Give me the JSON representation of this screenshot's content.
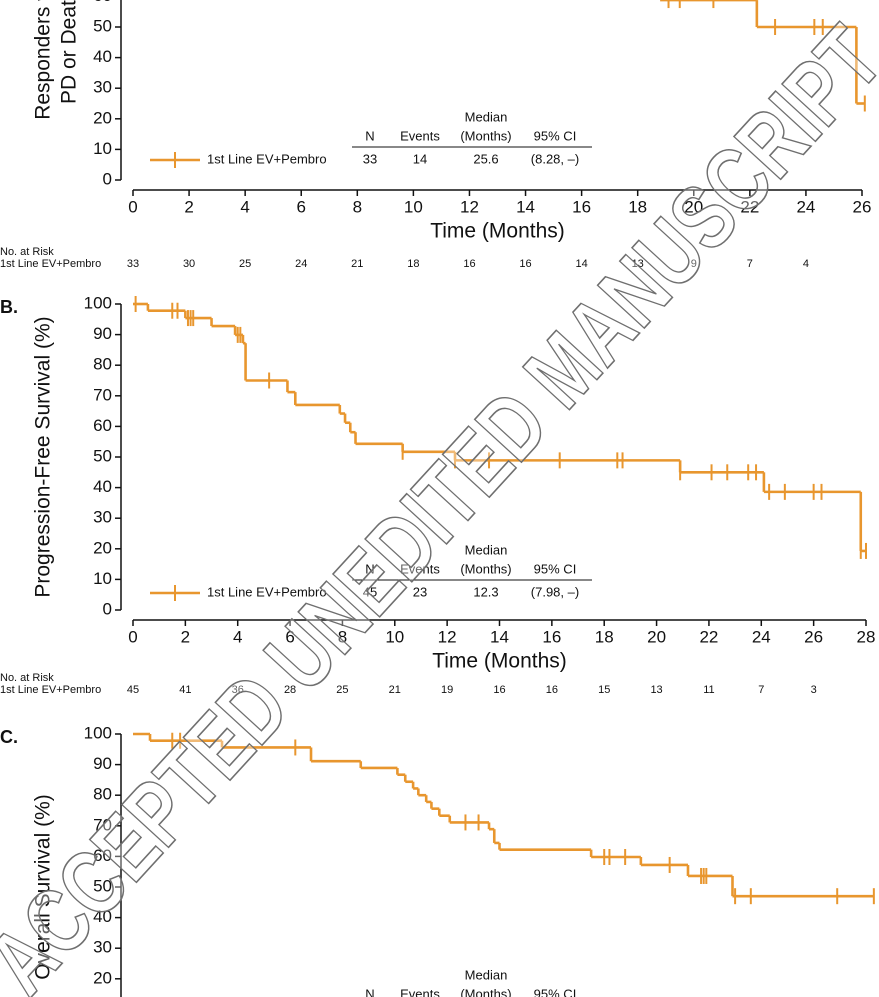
{
  "chart_data": [
    {
      "type": "step",
      "y_label": [
        "Responders without",
        "PD or Death (%)"
      ],
      "x_label": "Time (Months)",
      "xlim": [
        0,
        26
      ],
      "xticks": [
        0,
        2,
        4,
        6,
        8,
        10,
        12,
        14,
        16,
        18,
        20,
        22,
        24,
        26
      ],
      "ylim": [
        0,
        100
      ],
      "yticks": [
        0,
        10,
        20,
        30,
        40,
        50,
        60
      ],
      "series": [
        {
          "name": "1st Line EV+Pembro",
          "color": "#e8962e",
          "x": [
            18.8,
            22.25,
            25.8
          ],
          "values": [
            58.8,
            50,
            25
          ],
          "censor_x": [
            19.1,
            19.5,
            20.7,
            22.9,
            24.3,
            24.6,
            26.1
          ],
          "censor_values": [
            58.8,
            58.8,
            58.8,
            50,
            50,
            50,
            25
          ]
        }
      ],
      "stats": {
        "header_top": "Median",
        "header": [
          "N",
          "Events",
          "(Months)",
          "95% CI"
        ],
        "row": [
          33,
          14,
          25.6,
          "(8.28, –)"
        ]
      },
      "risk_title": "No. at Risk",
      "risk_label": "1st Line EV+Pembro",
      "at_risk": [
        33,
        30,
        25,
        24,
        21,
        18,
        16,
        16,
        14,
        13,
        9,
        7,
        4
      ]
    },
    {
      "type": "step",
      "panel": "B.",
      "y_label": [
        "Progression-Free Survival (%)"
      ],
      "x_label": "Time (Months)",
      "xlim": [
        0,
        28
      ],
      "xticks": [
        0,
        2,
        4,
        6,
        8,
        10,
        12,
        14,
        16,
        18,
        20,
        22,
        24,
        26,
        28
      ],
      "ylim": [
        0,
        100
      ],
      "yticks": [
        0,
        10,
        20,
        30,
        40,
        50,
        60,
        70,
        80,
        90,
        100
      ],
      "series": [
        {
          "name": "1st Line EV+Pembro",
          "color": "#e8962e",
          "x": [
            0,
            0.57,
            2.0,
            3.0,
            3.9,
            4.2,
            4.3,
            5.9,
            6.2,
            7.9,
            8.1,
            8.3,
            8.5,
            10.3,
            12.3,
            20.9,
            24.1,
            27.8
          ],
          "values": [
            100,
            97.8,
            95.4,
            92.8,
            89.9,
            87.2,
            75.0,
            71.2,
            67.0,
            64.2,
            61.2,
            58.1,
            54.3,
            51.7,
            48.9,
            45.0,
            38.6,
            19.3
          ],
          "censor_x": [
            0.1,
            1.5,
            1.7,
            2.1,
            2.2,
            2.3,
            4.0,
            4.1,
            5.2,
            10.3,
            12.3,
            13.6,
            16.3,
            18.5,
            18.7,
            20.9,
            22.1,
            22.7,
            23.5,
            23.8,
            24.3,
            24.9,
            26.0,
            26.3,
            27.8,
            28.0
          ],
          "censor_values": [
            100,
            97.8,
            97.8,
            95.4,
            95.4,
            95.4,
            89.9,
            89.9,
            75.0,
            51.7,
            48.9,
            48.9,
            48.9,
            48.9,
            48.9,
            45.0,
            45.0,
            45.0,
            45.0,
            45.0,
            38.6,
            38.6,
            38.6,
            38.6,
            19.3,
            19.3
          ]
        }
      ],
      "stats": {
        "header_top": "Median",
        "header": [
          "N",
          "Events",
          "(Months)",
          "95% CI"
        ],
        "row": [
          45,
          23,
          12.3,
          "(7.98, –)"
        ]
      },
      "risk_title": "No. at Risk",
      "risk_label": "1st Line EV+Pembro",
      "at_risk": [
        45,
        41,
        36,
        28,
        25,
        21,
        19,
        16,
        16,
        15,
        13,
        11,
        7,
        3
      ]
    },
    {
      "type": "step",
      "panel": "C.",
      "y_label": [
        "Overall Survival (%)"
      ],
      "xlim": [
        0,
        28
      ],
      "ylim": [
        0,
        100
      ],
      "yticks": [
        20,
        30,
        40,
        50,
        60,
        70,
        80,
        90,
        100
      ],
      "series": [
        {
          "name": "1st Line EV+Pembro",
          "color": "#e8962e",
          "x": [
            0,
            0.65,
            3.4,
            6.8,
            8.7,
            10.1,
            10.4,
            10.7,
            10.9,
            11.2,
            11.4,
            11.7,
            12.1,
            13.6,
            13.8,
            14.0,
            17.5,
            19.4,
            21.2,
            22.9
          ],
          "values": [
            100,
            97.8,
            95.6,
            91.1,
            88.9,
            86.7,
            84.4,
            82.2,
            80.0,
            77.8,
            75.6,
            73.3,
            71.1,
            68.9,
            64.4,
            62.2,
            59.8,
            57.2,
            53.6,
            47.0
          ],
          "censor_x": [
            1.5,
            1.8,
            6.2,
            12.7,
            13.2,
            18.0,
            18.2,
            18.8,
            20.5,
            21.7,
            21.8,
            21.9,
            23.0,
            23.6,
            26.9,
            28.3
          ],
          "censor_values": [
            97.8,
            97.8,
            95.6,
            71.1,
            71.1,
            59.8,
            59.8,
            59.8,
            57.2,
            53.6,
            53.6,
            53.6,
            47.0,
            47.0,
            47.0,
            47.0
          ]
        }
      ],
      "stats": {
        "header_top": "Median",
        "header": [
          "N",
          "Events",
          "(Months)",
          "95% CI"
        ]
      }
    }
  ],
  "watermark": "ACCEPTED UNEDITED MANUSCRIPT"
}
